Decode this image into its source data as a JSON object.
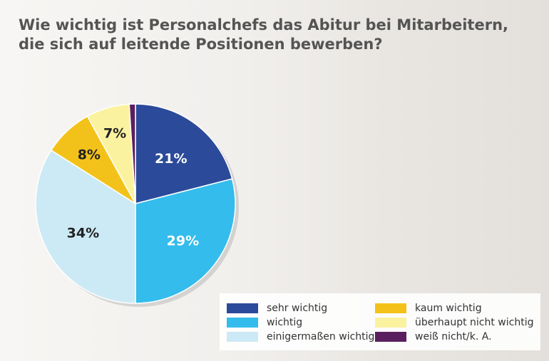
{
  "chart_data": {
    "type": "pie",
    "title": "Wie wichtig ist Personalchefs das Abitur bei Mitarbeitern, die sich auf leitende Positionen bewerben?",
    "labels": [
      "sehr wichtig",
      "wichtig",
      "einigermaßen wichtig",
      "kaum wichtig",
      "überhaupt nicht wichtig",
      "weiß nicht/k. A."
    ],
    "values": [
      21,
      29,
      34,
      8,
      7,
      1
    ],
    "value_labels": [
      "21%",
      "29%",
      "34%",
      "8%",
      "7%",
      ""
    ],
    "colors": [
      "#2b4a9a",
      "#33bcec",
      "#cceaf5",
      "#f3c21a",
      "#fbf2a0",
      "#5a1f5e"
    ],
    "legend_position": "bottom-right"
  },
  "legend": {
    "items": [
      {
        "label": "sehr wichtig",
        "color": "#2b4a9a"
      },
      {
        "label": "wichtig",
        "color": "#33bcec"
      },
      {
        "label": "einigermaßen wichtig",
        "color": "#cceaf5"
      },
      {
        "label": "kaum wichtig",
        "color": "#f3c21a"
      },
      {
        "label": "überhaupt nicht wichtig",
        "color": "#fbf2a0"
      },
      {
        "label": "weiß nicht/k. A.",
        "color": "#5a1f5e"
      }
    ]
  }
}
